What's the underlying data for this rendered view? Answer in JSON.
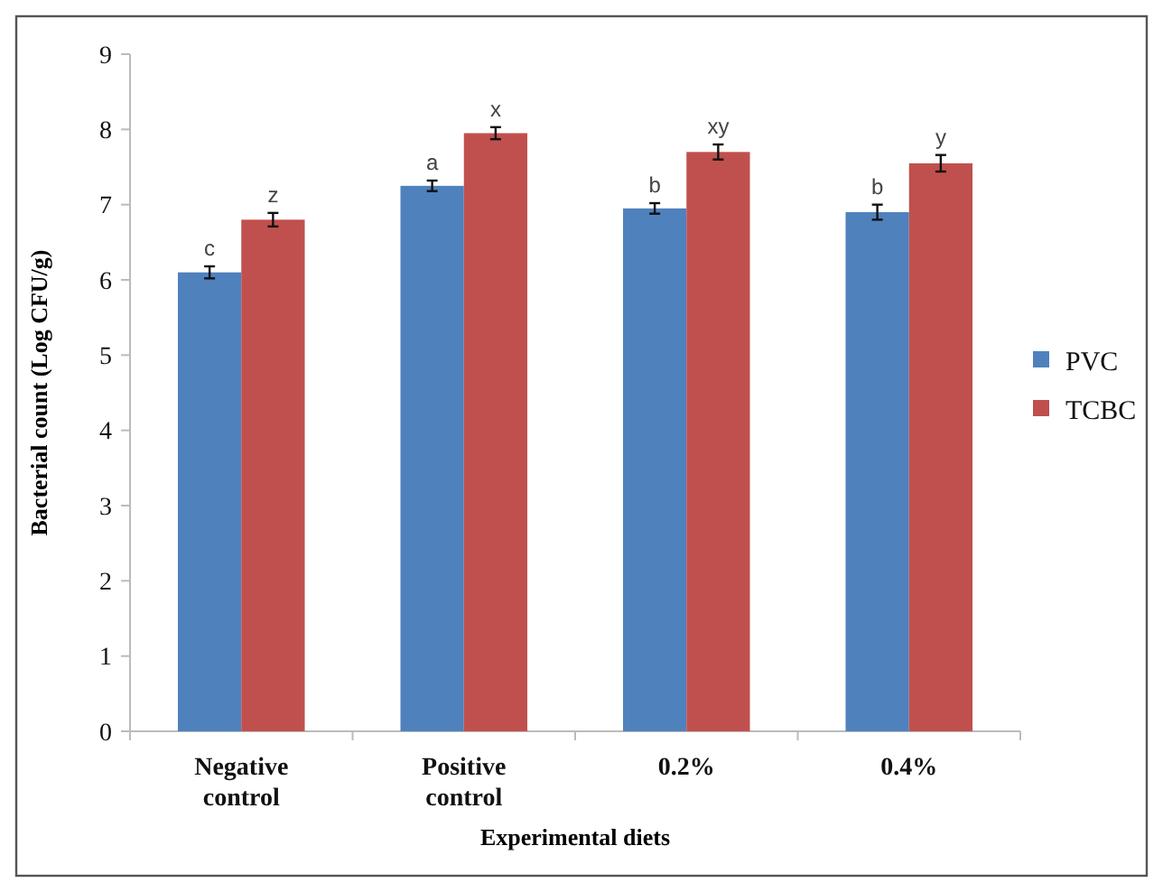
{
  "chart_data": {
    "type": "bar",
    "xlabel": "Experimental diets",
    "ylabel": "Bacterial count (Log CFU/g)",
    "categories": [
      "Negative control",
      "Positive control",
      "0.2%",
      "0.4%"
    ],
    "series": [
      {
        "name": "PVC",
        "color": "#4f81bd",
        "values": [
          6.1,
          7.25,
          6.95,
          6.9
        ],
        "errors": [
          0.08,
          0.07,
          0.07,
          0.1
        ],
        "value_labels": [
          "c",
          "a",
          "b",
          "b"
        ]
      },
      {
        "name": "TCBC",
        "color": "#c0504d",
        "values": [
          6.8,
          7.95,
          7.7,
          7.55
        ],
        "errors": [
          0.09,
          0.08,
          0.1,
          0.11
        ],
        "value_labels": [
          "z",
          "x",
          "xy",
          "y"
        ]
      }
    ],
    "ylim": [
      0,
      9
    ],
    "yticks": [
      0,
      1,
      2,
      3,
      4,
      5,
      6,
      7,
      8,
      9
    ],
    "legend": "right"
  }
}
